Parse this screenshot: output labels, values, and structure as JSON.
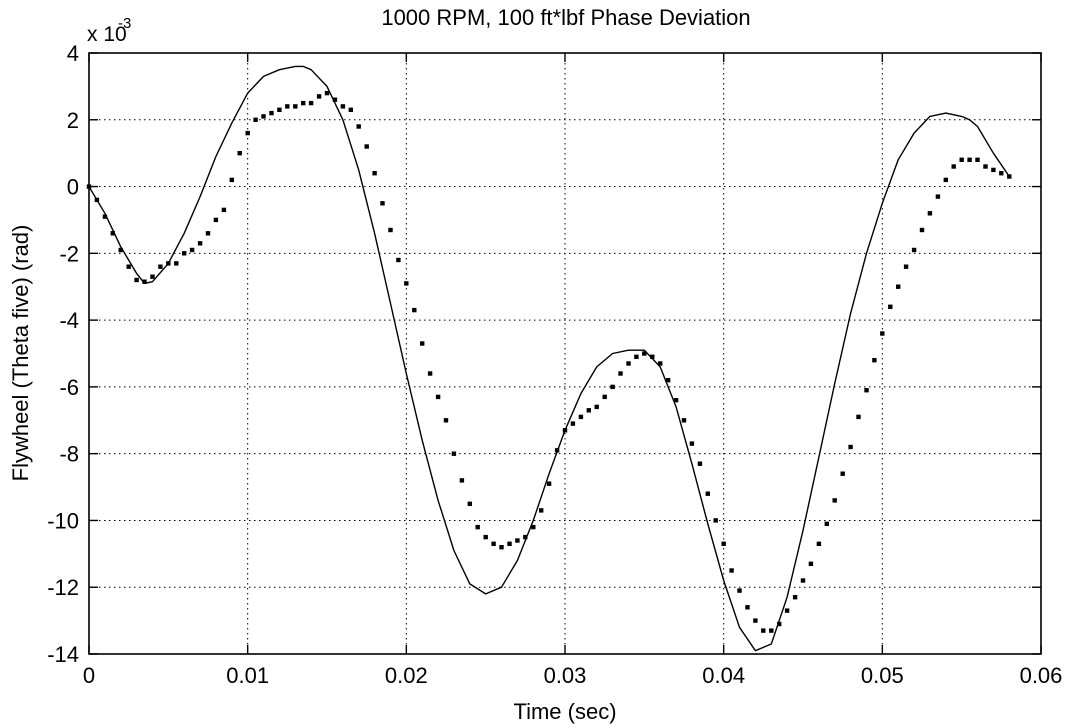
{
  "chart_data": {
    "type": "line",
    "title": "1000 RPM, 100 ft*lbf Phase Deviation",
    "xlabel": "Time (sec)",
    "ylabel": "Flywheel (Theta five) (rad)",
    "y_multiplier_label": "x 10",
    "y_multiplier_exponent": "-3",
    "xlim": [
      0,
      0.06
    ],
    "ylim": [
      -14,
      4
    ],
    "x_ticks": [
      0,
      0.01,
      0.02,
      0.03,
      0.04,
      0.05,
      0.06
    ],
    "x_tick_labels": [
      "0",
      "0.01",
      "0.02",
      "0.03",
      "0.04",
      "0.05",
      "0.06"
    ],
    "y_ticks": [
      -14,
      -12,
      -10,
      -8,
      -6,
      -4,
      -2,
      0,
      2,
      4
    ],
    "y_tick_labels": [
      "-14",
      "-12",
      "-10",
      "-8",
      "-6",
      "-4",
      "-2",
      "0",
      "2",
      "4"
    ],
    "grid": true,
    "grid_style": "dotted",
    "series": [
      {
        "style": "solid-line",
        "color": "#000000",
        "x": [
          0,
          0.001,
          0.002,
          0.003,
          0.0035,
          0.004,
          0.005,
          0.006,
          0.007,
          0.008,
          0.009,
          0.01,
          0.011,
          0.012,
          0.013,
          0.0135,
          0.014,
          0.015,
          0.016,
          0.017,
          0.018,
          0.019,
          0.02,
          0.021,
          0.022,
          0.023,
          0.024,
          0.025,
          0.026,
          0.027,
          0.028,
          0.029,
          0.03,
          0.031,
          0.032,
          0.033,
          0.034,
          0.035,
          0.036,
          0.037,
          0.038,
          0.039,
          0.04,
          0.041,
          0.042,
          0.043,
          0.044,
          0.045,
          0.046,
          0.047,
          0.048,
          0.049,
          0.05,
          0.051,
          0.052,
          0.053,
          0.054,
          0.055,
          0.0555,
          0.056,
          0.057,
          0.058
        ],
        "y": [
          0,
          -0.8,
          -1.8,
          -2.6,
          -2.9,
          -2.85,
          -2.3,
          -1.4,
          -0.3,
          0.9,
          1.9,
          2.8,
          3.3,
          3.5,
          3.6,
          3.6,
          3.5,
          3.0,
          2.0,
          0.5,
          -1.4,
          -3.5,
          -5.6,
          -7.6,
          -9.4,
          -10.9,
          -11.9,
          -12.2,
          -12.0,
          -11.2,
          -10.0,
          -8.6,
          -7.3,
          -6.2,
          -5.4,
          -5.0,
          -4.9,
          -4.9,
          -5.4,
          -6.6,
          -8.3,
          -10.1,
          -11.8,
          -13.2,
          -13.9,
          -13.7,
          -12.3,
          -10.3,
          -8.1,
          -5.9,
          -3.8,
          -2.0,
          -0.5,
          0.8,
          1.6,
          2.1,
          2.2,
          2.1,
          2.0,
          1.8,
          1.0,
          0.3
        ]
      },
      {
        "style": "dots",
        "color": "#000000",
        "x": [
          0,
          0.0005,
          0.001,
          0.0015,
          0.002,
          0.0025,
          0.003,
          0.0035,
          0.004,
          0.0045,
          0.005,
          0.0055,
          0.006,
          0.0065,
          0.007,
          0.0075,
          0.008,
          0.0085,
          0.009,
          0.0095,
          0.01,
          0.0105,
          0.011,
          0.0115,
          0.012,
          0.0125,
          0.013,
          0.0135,
          0.014,
          0.0145,
          0.015,
          0.0155,
          0.016,
          0.0165,
          0.017,
          0.0175,
          0.018,
          0.0185,
          0.019,
          0.0195,
          0.02,
          0.0205,
          0.021,
          0.0215,
          0.022,
          0.0225,
          0.023,
          0.0235,
          0.024,
          0.0245,
          0.025,
          0.0255,
          0.026,
          0.0265,
          0.027,
          0.0275,
          0.028,
          0.0285,
          0.029,
          0.0295,
          0.03,
          0.0305,
          0.031,
          0.0315,
          0.032,
          0.0325,
          0.033,
          0.0335,
          0.034,
          0.0345,
          0.035,
          0.0355,
          0.036,
          0.0365,
          0.037,
          0.0375,
          0.038,
          0.0385,
          0.039,
          0.0395,
          0.04,
          0.0405,
          0.041,
          0.0415,
          0.042,
          0.0425,
          0.043,
          0.0435,
          0.044,
          0.0445,
          0.045,
          0.0455,
          0.046,
          0.0465,
          0.047,
          0.0475,
          0.048,
          0.0485,
          0.049,
          0.0495,
          0.05,
          0.0505,
          0.051,
          0.0515,
          0.052,
          0.0525,
          0.053,
          0.0535,
          0.054,
          0.0545,
          0.055,
          0.0555,
          0.056,
          0.0565,
          0.057,
          0.0575,
          0.058
        ],
        "y": [
          0,
          -0.4,
          -0.9,
          -1.4,
          -1.9,
          -2.4,
          -2.8,
          -2.85,
          -2.7,
          -2.4,
          -2.3,
          -2.3,
          -2.0,
          -1.9,
          -1.7,
          -1.4,
          -1.0,
          -0.7,
          0.2,
          1.0,
          1.6,
          2.0,
          2.1,
          2.2,
          2.3,
          2.4,
          2.4,
          2.5,
          2.5,
          2.7,
          2.8,
          2.6,
          2.4,
          2.3,
          1.8,
          1.2,
          0.4,
          -0.5,
          -1.3,
          -2.2,
          -2.9,
          -3.7,
          -4.7,
          -5.6,
          -6.3,
          -7.0,
          -8.0,
          -8.8,
          -9.5,
          -10.2,
          -10.5,
          -10.7,
          -10.8,
          -10.7,
          -10.6,
          -10.5,
          -10.2,
          -9.7,
          -8.9,
          -7.9,
          -7.3,
          -7.1,
          -6.9,
          -6.7,
          -6.6,
          -6.3,
          -6.0,
          -5.6,
          -5.3,
          -5.1,
          -5.0,
          -5.1,
          -5.3,
          -5.8,
          -6.4,
          -7.0,
          -7.7,
          -8.3,
          -9.2,
          -10.0,
          -10.7,
          -11.5,
          -12.1,
          -12.6,
          -13.0,
          -13.3,
          -13.3,
          -13.1,
          -12.7,
          -12.3,
          -11.8,
          -11.3,
          -10.7,
          -10.1,
          -9.4,
          -8.6,
          -7.8,
          -6.9,
          -6.1,
          -5.2,
          -4.4,
          -3.6,
          -3.0,
          -2.4,
          -1.9,
          -1.3,
          -0.8,
          -0.3,
          0.2,
          0.6,
          0.8,
          0.8,
          0.8,
          0.6,
          0.5,
          0.4,
          0.3
        ]
      }
    ]
  }
}
